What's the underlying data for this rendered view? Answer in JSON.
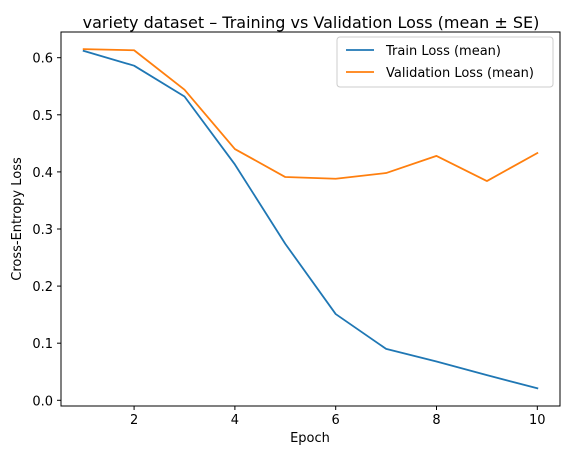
{
  "chart_data": {
    "type": "line",
    "title": "variety dataset – Training vs Validation Loss (mean ± SE)",
    "xlabel": "Epoch",
    "ylabel": "Cross-Entropy Loss",
    "xlim": [
      0.55,
      10.45
    ],
    "ylim": [
      -0.01,
      0.645
    ],
    "xticks": [
      2,
      4,
      6,
      8,
      10
    ],
    "yticks": [
      0.0,
      0.1,
      0.2,
      0.3,
      0.4,
      0.5,
      0.6
    ],
    "ytick_labels": [
      "0.0",
      "0.1",
      "0.2",
      "0.3",
      "0.4",
      "0.5",
      "0.6"
    ],
    "xtick_labels": [
      "2",
      "4",
      "6",
      "8",
      "10"
    ],
    "grid": false,
    "legend_position": "top-right",
    "x": [
      1,
      2,
      3,
      4,
      5,
      6,
      7,
      8,
      9,
      10
    ],
    "series": [
      {
        "name": "Train Loss (mean)",
        "color": "#1f77b4",
        "values": [
          0.612,
          0.586,
          0.532,
          0.413,
          0.274,
          0.151,
          0.09,
          0.068,
          0.044,
          0.021
        ]
      },
      {
        "name": "Validation Loss (mean)",
        "color": "#ff7f0e",
        "values": [
          0.615,
          0.613,
          0.544,
          0.44,
          0.391,
          0.388,
          0.398,
          0.428,
          0.384,
          0.433
        ]
      }
    ]
  }
}
